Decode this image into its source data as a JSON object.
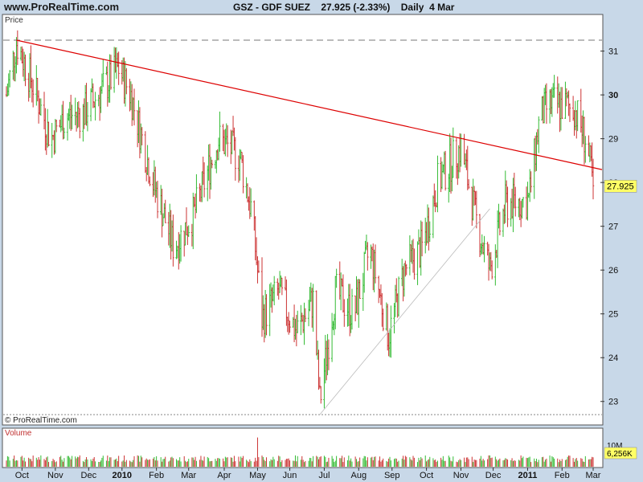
{
  "header": {
    "site": "www.ProRealTime.com",
    "ticker": "GSZ - GDF SUEZ",
    "last_price": "27.925",
    "change": "(-2.33%)",
    "period": "Daily",
    "date": "4 Mar"
  },
  "price_panel": {
    "label": "Price",
    "copyright": "© ProRealTime.com"
  },
  "volume_panel": {
    "label": "Volume",
    "scale_label": "10M",
    "last_volume": "6,256K"
  },
  "colors": {
    "up": "#33bb33",
    "down": "#cc3333",
    "trendline": "#dd0000",
    "support": "#aaaaaa",
    "background": "#c8d8e8",
    "plot_bg": "#ffffff",
    "price_tag": "#ffff66"
  },
  "chart_data": [
    {
      "type": "ohlc",
      "title": "GSZ - GDF SUEZ",
      "y_ticks": [
        23,
        24,
        25,
        26,
        27,
        28,
        29,
        30,
        31
      ],
      "ylim": [
        22.5,
        31.8
      ],
      "x_labels": [
        "Oct",
        "Nov",
        "Dec",
        "2010",
        "Feb",
        "Mar",
        "Apr",
        "May",
        "Jun",
        "Jul",
        "Aug",
        "Sep",
        "Oct",
        "Nov",
        "Dec",
        "2011",
        "Feb",
        "Mar"
      ],
      "last_close": 27.925,
      "horizontal_levels": [
        {
          "value": 31.25,
          "style": "dashed"
        },
        {
          "value": 22.7,
          "style": "dotted"
        }
      ],
      "trendlines": [
        {
          "from": {
            "date": "2009-10-01",
            "value": 31.25
          },
          "to": {
            "date": "2011-03-04",
            "value": 28.3
          }
        },
        {
          "from": {
            "date": "2010-07-01",
            "value": 22.7
          },
          "to": {
            "date": "2010-12-01",
            "value": 27.4
          }
        }
      ],
      "price_path": [
        {
          "date": "2009-09-22",
          "value": 30.0
        },
        {
          "date": "2009-10-01",
          "value": 31.2
        },
        {
          "date": "2009-10-15",
          "value": 30.3
        },
        {
          "date": "2009-11-01",
          "value": 29.0
        },
        {
          "date": "2009-11-15",
          "value": 29.5
        },
        {
          "date": "2009-12-01",
          "value": 29.6
        },
        {
          "date": "2009-12-20",
          "value": 30.2
        },
        {
          "date": "2010-01-01",
          "value": 30.6
        },
        {
          "date": "2010-01-12",
          "value": 30.0
        },
        {
          "date": "2010-02-01",
          "value": 28.0
        },
        {
          "date": "2010-02-20",
          "value": 26.5
        },
        {
          "date": "2010-03-10",
          "value": 27.3
        },
        {
          "date": "2010-04-01",
          "value": 29.0
        },
        {
          "date": "2010-04-20",
          "value": 28.6
        },
        {
          "date": "2010-05-01",
          "value": 27.3
        },
        {
          "date": "2010-05-10",
          "value": 24.9
        },
        {
          "date": "2010-05-25",
          "value": 25.5
        },
        {
          "date": "2010-06-10",
          "value": 24.6
        },
        {
          "date": "2010-06-25",
          "value": 25.3
        },
        {
          "date": "2010-07-01",
          "value": 23.0
        },
        {
          "date": "2010-07-15",
          "value": 25.5
        },
        {
          "date": "2010-08-01",
          "value": 25.0
        },
        {
          "date": "2010-08-15",
          "value": 26.5
        },
        {
          "date": "2010-09-01",
          "value": 24.5
        },
        {
          "date": "2010-09-15",
          "value": 26.0
        },
        {
          "date": "2010-10-01",
          "value": 26.5
        },
        {
          "date": "2010-10-15",
          "value": 28.0
        },
        {
          "date": "2010-11-05",
          "value": 28.8
        },
        {
          "date": "2010-11-20",
          "value": 27.0
        },
        {
          "date": "2010-12-01",
          "value": 26.0
        },
        {
          "date": "2010-12-15",
          "value": 27.5
        },
        {
          "date": "2011-01-05",
          "value": 27.6
        },
        {
          "date": "2011-01-15",
          "value": 29.5
        },
        {
          "date": "2011-01-25",
          "value": 29.8
        },
        {
          "date": "2011-02-15",
          "value": 29.7
        },
        {
          "date": "2011-02-25",
          "value": 29.0
        },
        {
          "date": "2011-03-04",
          "value": 27.925
        }
      ]
    },
    {
      "type": "bar",
      "title": "Volume",
      "ylim": [
        0,
        12
      ],
      "y_ticks_label": "10M",
      "last_value_label": "6,256K",
      "peaks": [
        {
          "date": "2010-05-06",
          "value": 9.5
        }
      ]
    }
  ]
}
